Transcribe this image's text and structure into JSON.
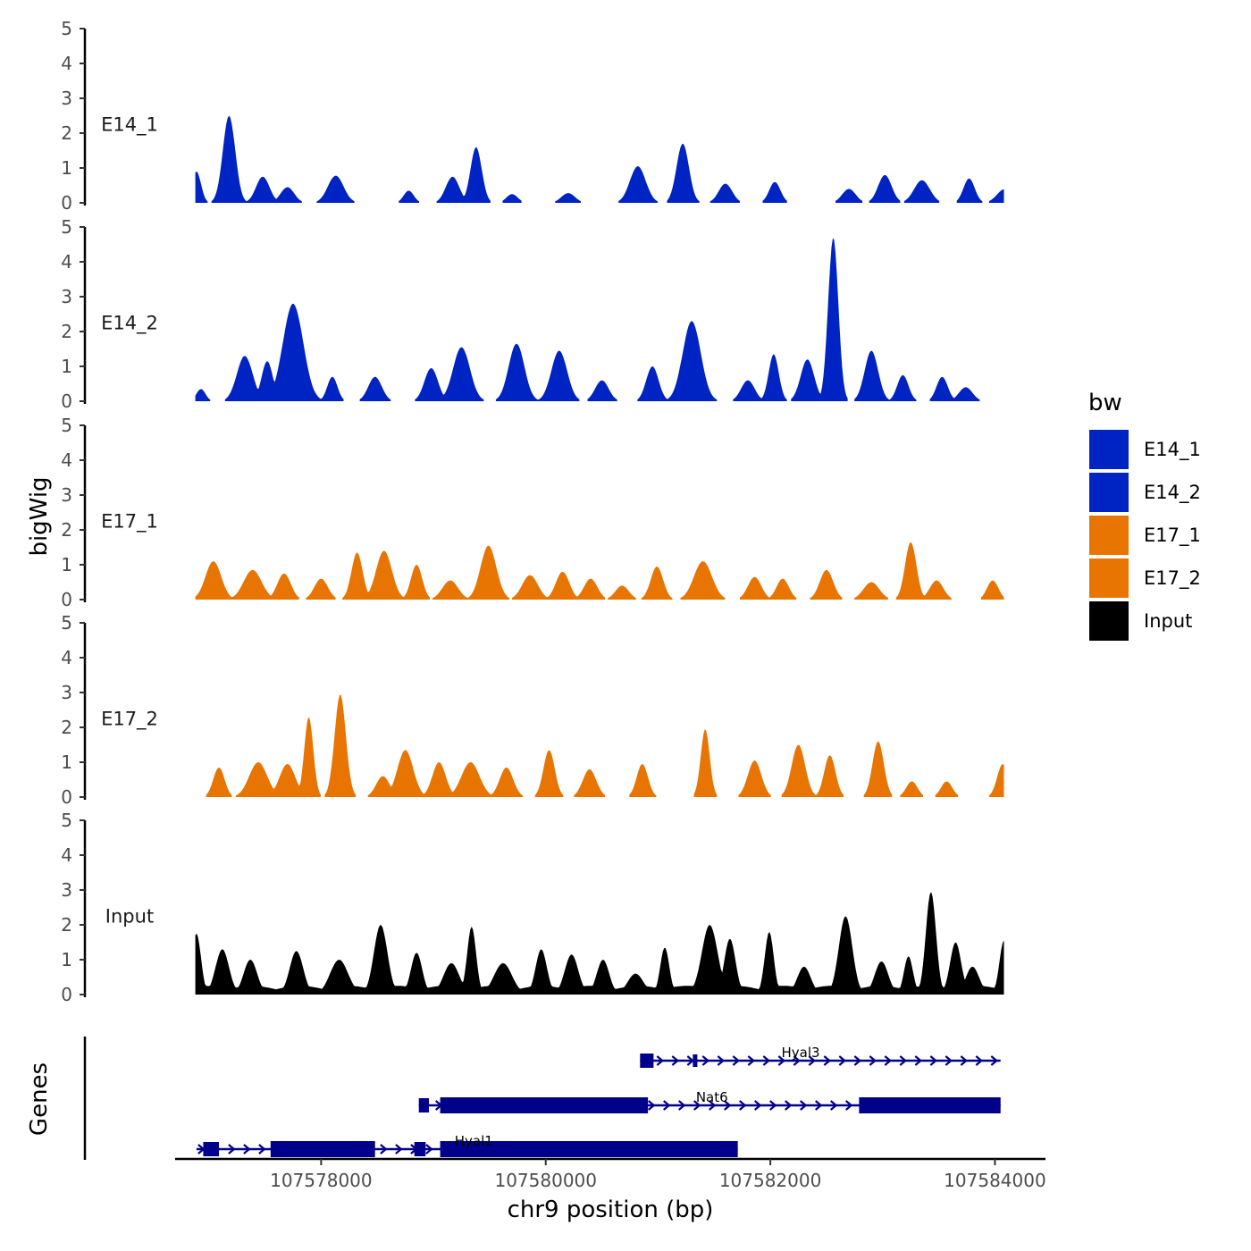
{
  "chart_data": {
    "type": "area",
    "ylabel": "bigWig",
    "xlabel": "chr9 position (bp)",
    "genes_label": "Genes",
    "x_range": [
      107576700,
      107584450
    ],
    "x_ticks": [
      107578000,
      107580000,
      107582000,
      107584000
    ],
    "x_tick_labels": [
      "107578000",
      "107580000",
      "107582000",
      "107584000"
    ],
    "y_range": [
      0,
      5
    ],
    "y_ticks": [
      0,
      1,
      2,
      3,
      4,
      5
    ],
    "y_tick_labels": [
      "0",
      "1",
      "2",
      "3",
      "4",
      "5"
    ],
    "legend": {
      "title": "bw",
      "entries": [
        {
          "label": "E14_1",
          "color": "#0023C4"
        },
        {
          "label": "E14_2",
          "color": "#0023C4"
        },
        {
          "label": "E17_1",
          "color": "#E87502"
        },
        {
          "label": "E17_2",
          "color": "#E87502"
        },
        {
          "label": "Input",
          "color": "#000000"
        }
      ]
    },
    "tracks": [
      {
        "name": "E14_1",
        "color": "#0023C4",
        "peaks": [
          [
            107576890,
            0.9,
            40
          ],
          [
            107577180,
            2.5,
            55
          ],
          [
            107577480,
            0.75,
            60
          ],
          [
            107577700,
            0.45,
            60
          ],
          [
            107578130,
            0.78,
            70
          ],
          [
            107578780,
            0.35,
            45
          ],
          [
            107579170,
            0.75,
            60
          ],
          [
            107579380,
            1.6,
            50
          ],
          [
            107579700,
            0.25,
            50
          ],
          [
            107580200,
            0.28,
            60
          ],
          [
            107580820,
            1.05,
            70
          ],
          [
            107581220,
            1.7,
            55
          ],
          [
            107581600,
            0.55,
            60
          ],
          [
            107582040,
            0.6,
            50
          ],
          [
            107582700,
            0.4,
            60
          ],
          [
            107583020,
            0.8,
            60
          ],
          [
            107583350,
            0.65,
            70
          ],
          [
            107583770,
            0.7,
            50
          ],
          [
            107584090,
            0.4,
            70
          ]
        ]
      },
      {
        "name": "E14_2",
        "color": "#0023C4",
        "peaks": [
          [
            107576930,
            0.35,
            40
          ],
          [
            107577320,
            1.3,
            70
          ],
          [
            107577520,
            1.15,
            50
          ],
          [
            107577750,
            2.8,
            90
          ],
          [
            107578100,
            0.7,
            45
          ],
          [
            107578480,
            0.7,
            60
          ],
          [
            107578980,
            0.95,
            60
          ],
          [
            107579250,
            1.55,
            75
          ],
          [
            107579740,
            1.65,
            70
          ],
          [
            107580120,
            1.45,
            70
          ],
          [
            107580500,
            0.6,
            60
          ],
          [
            107580950,
            1.0,
            55
          ],
          [
            107581300,
            2.3,
            80
          ],
          [
            107581800,
            0.6,
            60
          ],
          [
            107582030,
            1.35,
            45
          ],
          [
            107582330,
            1.2,
            60
          ],
          [
            107582560,
            4.7,
            45
          ],
          [
            107582900,
            1.45,
            60
          ],
          [
            107583180,
            0.75,
            50
          ],
          [
            107583530,
            0.7,
            50
          ],
          [
            107583740,
            0.4,
            60
          ]
        ]
      },
      {
        "name": "E17_1",
        "color": "#E87502",
        "peaks": [
          [
            107577040,
            1.1,
            70
          ],
          [
            107577390,
            0.85,
            80
          ],
          [
            107577670,
            0.75,
            60
          ],
          [
            107578000,
            0.6,
            60
          ],
          [
            107578320,
            1.35,
            50
          ],
          [
            107578560,
            1.4,
            70
          ],
          [
            107578850,
            1.0,
            50
          ],
          [
            107579150,
            0.55,
            70
          ],
          [
            107579490,
            1.55,
            70
          ],
          [
            107579860,
            0.7,
            70
          ],
          [
            107580150,
            0.8,
            60
          ],
          [
            107580400,
            0.6,
            60
          ],
          [
            107580680,
            0.4,
            60
          ],
          [
            107580990,
            0.95,
            55
          ],
          [
            107581400,
            1.1,
            80
          ],
          [
            107581860,
            0.65,
            60
          ],
          [
            107582110,
            0.6,
            55
          ],
          [
            107582500,
            0.85,
            60
          ],
          [
            107582900,
            0.5,
            70
          ],
          [
            107583250,
            1.65,
            50
          ],
          [
            107583480,
            0.55,
            60
          ],
          [
            107583980,
            0.55,
            50
          ]
        ]
      },
      {
        "name": "E17_2",
        "color": "#E87502",
        "peaks": [
          [
            107577090,
            0.85,
            50
          ],
          [
            107577440,
            1.0,
            80
          ],
          [
            107577700,
            0.95,
            70
          ],
          [
            107577890,
            2.3,
            40
          ],
          [
            107578170,
            2.95,
            50
          ],
          [
            107578550,
            0.6,
            60
          ],
          [
            107578750,
            1.35,
            70
          ],
          [
            107579050,
            1.0,
            60
          ],
          [
            107579330,
            1.0,
            80
          ],
          [
            107579650,
            0.85,
            60
          ],
          [
            107580030,
            1.35,
            50
          ],
          [
            107580390,
            0.8,
            60
          ],
          [
            107580860,
            0.95,
            50
          ],
          [
            107581420,
            1.95,
            40
          ],
          [
            107581860,
            1.05,
            60
          ],
          [
            107582250,
            1.5,
            60
          ],
          [
            107582530,
            1.2,
            50
          ],
          [
            107582960,
            1.6,
            50
          ],
          [
            107583260,
            0.45,
            50
          ],
          [
            107583570,
            0.45,
            50
          ],
          [
            107584070,
            0.95,
            50
          ]
        ]
      },
      {
        "name": "Input",
        "color": "#000000",
        "baseline": 0.25,
        "peaks": [
          [
            107576890,
            1.75,
            40
          ],
          [
            107577120,
            1.3,
            60
          ],
          [
            107577370,
            1.0,
            60
          ],
          [
            107577780,
            1.25,
            60
          ],
          [
            107578160,
            1.0,
            80
          ],
          [
            107578530,
            2.0,
            60
          ],
          [
            107578850,
            1.2,
            50
          ],
          [
            107579160,
            0.9,
            70
          ],
          [
            107579340,
            1.95,
            40
          ],
          [
            107579620,
            0.9,
            80
          ],
          [
            107579960,
            1.3,
            50
          ],
          [
            107580230,
            1.15,
            60
          ],
          [
            107580510,
            1.0,
            55
          ],
          [
            107580800,
            0.6,
            70
          ],
          [
            107581060,
            1.35,
            40
          ],
          [
            107581460,
            2.0,
            70
          ],
          [
            107581640,
            1.6,
            50
          ],
          [
            107581990,
            1.8,
            40
          ],
          [
            107582300,
            0.8,
            60
          ],
          [
            107582670,
            2.25,
            60
          ],
          [
            107582990,
            0.95,
            60
          ],
          [
            107583230,
            1.1,
            40
          ],
          [
            107583430,
            2.95,
            45
          ],
          [
            107583650,
            1.5,
            50
          ],
          [
            107583800,
            0.8,
            60
          ],
          [
            107584080,
            1.55,
            40
          ]
        ]
      }
    ],
    "genes": [
      {
        "name": "Hyal3",
        "strand": "+",
        "start": 107580840,
        "end": 107584050,
        "label_pos": 107582270,
        "exons": [
          [
            107580840,
            107580960,
            "thin"
          ],
          [
            107581310,
            107581350,
            "line"
          ]
        ]
      },
      {
        "name": "Nat6",
        "strand": "+",
        "start": 107578870,
        "end": 107584050,
        "label_pos": 107581480,
        "exons": [
          [
            107578870,
            107578960,
            "thin"
          ],
          [
            107579060,
            107580910,
            "thick"
          ],
          [
            107582790,
            107584050,
            "thick"
          ]
        ]
      },
      {
        "name": "Hyal1",
        "strand": "+",
        "start": 107576890,
        "end": 107581710,
        "label_pos": 107579360,
        "exons": [
          [
            107576950,
            107577090,
            "thin"
          ],
          [
            107577550,
            107578480,
            "thick"
          ],
          [
            107578830,
            107578930,
            "thin"
          ],
          [
            107579060,
            107581710,
            "thick"
          ]
        ]
      }
    ]
  }
}
